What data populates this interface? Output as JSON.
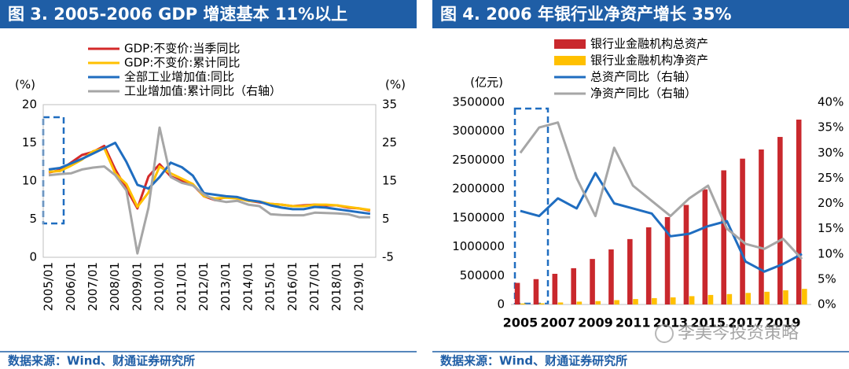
{
  "chart_data": [
    {
      "type": "line",
      "title": "图 3. 2005-2006 GDP 增速基本 11%以上",
      "y_unit": "(%)",
      "y2_unit": "(%)",
      "source": "数据来源：Wind、财通证券研究所",
      "legend": "top",
      "grid": false,
      "categories": [
        "2005/01",
        null,
        "2006/01",
        null,
        "2007/01",
        null,
        "2008/01",
        null,
        "2009/01",
        null,
        "2010/01",
        null,
        "2011/01",
        null,
        "2012/01",
        null,
        "2013/01",
        null,
        "2014/01",
        null,
        "2015/01",
        null,
        "2016/01",
        null,
        "2017/01",
        null,
        "2018/01",
        null,
        "2019/01",
        null
      ],
      "ylim": [
        0,
        20
      ],
      "yticks": [
        0,
        5,
        10,
        15,
        20
      ],
      "y2lim": [
        -5,
        35
      ],
      "y2ticks": [
        -5,
        5,
        15,
        25,
        35
      ],
      "series": [
        {
          "name": "GDP:不变价:当季同比",
          "color": "#d42a2a",
          "values": [
            11.1,
            11.4,
            12.4,
            13.4,
            13.8,
            14.6,
            11.5,
            9.0,
            6.4,
            10.6,
            12.2,
            10.6,
            10.0,
            9.5,
            8.0,
            7.5,
            7.9,
            7.7,
            7.4,
            7.2,
            7.0,
            6.9,
            6.7,
            6.8,
            6.9,
            6.8,
            6.8,
            6.5,
            6.4,
            6.1
          ]
        },
        {
          "name": "GDP:不变价:累计同比",
          "color": "#ffc000",
          "values": [
            11.2,
            11.3,
            12.0,
            12.8,
            13.9,
            14.3,
            11.0,
            9.6,
            6.6,
            8.5,
            11.9,
            11.0,
            10.3,
            9.6,
            8.0,
            7.7,
            7.8,
            7.7,
            7.4,
            7.3,
            7.0,
            6.9,
            6.7,
            6.7,
            6.9,
            6.9,
            6.8,
            6.6,
            6.4,
            6.2
          ]
        },
        {
          "name": "全部工业增加值:同比",
          "color": "#1f6dc0",
          "values": [
            11.5,
            11.7,
            12.3,
            12.9,
            13.6,
            14.3,
            15.0,
            12.5,
            9.5,
            9.0,
            10.5,
            12.4,
            11.8,
            10.7,
            8.4,
            8.2,
            8.0,
            7.9,
            7.5,
            7.3,
            6.8,
            6.5,
            6.3,
            6.3,
            6.6,
            6.5,
            6.3,
            6.1,
            5.9,
            5.7
          ]
        },
        {
          "name": "工业增加值:累计同比（右轴）",
          "color": "#a6a6a6",
          "axis": "y2",
          "values": [
            16.5,
            16.8,
            17.0,
            18.0,
            18.5,
            18.8,
            16.5,
            12.5,
            -4.0,
            8.0,
            29.0,
            16.0,
            14.5,
            13.8,
            11.5,
            10.0,
            9.5,
            9.8,
            8.8,
            8.4,
            6.3,
            6.1,
            6.0,
            6.0,
            6.7,
            6.6,
            6.5,
            6.3,
            5.5,
            5.5
          ]
        }
      ]
    },
    {
      "type": "bar",
      "title": "图 4. 2006 年银行业净资产增长 35%",
      "y_unit": "(亿元)",
      "source": "数据来源：Wind、财通证券研究所",
      "legend": "top-right",
      "grid": false,
      "categories": [
        "2005",
        null,
        "2007",
        null,
        "2009",
        null,
        "2011",
        null,
        "2013",
        null,
        "2015",
        null,
        "2017",
        null,
        "2019",
        null
      ],
      "ylim": [
        0,
        3500000
      ],
      "yticks": [
        0,
        500000,
        1000000,
        1500000,
        2000000,
        2500000,
        3000000,
        3500000
      ],
      "y2lim": [
        0,
        40
      ],
      "y2ticks": [
        {
          "value": 0,
          "label": "0%"
        },
        {
          "value": 5,
          "label": "5%"
        },
        {
          "value": 10,
          "label": "10%"
        },
        {
          "value": 15,
          "label": "15%"
        },
        {
          "value": 20,
          "label": "20%"
        },
        {
          "value": 25,
          "label": "25%"
        },
        {
          "value": 30,
          "label": "30%"
        },
        {
          "value": 35,
          "label": "35%"
        },
        {
          "value": 40,
          "label": "40%"
        }
      ],
      "series": [
        {
          "name": "银行业金融机构总资产",
          "type": "bar",
          "color": "#c9282d",
          "values": [
            374000,
            439000,
            531000,
            628000,
            788000,
            953000,
            1132000,
            1336000,
            1513000,
            1723000,
            1993000,
            2322000,
            2524000,
            2683000,
            2900000,
            3200000
          ]
        },
        {
          "name": "银行业金融机构净资产",
          "type": "bar",
          "color": "#ffc000",
          "values": [
            17000,
            20000,
            35000,
            49000,
            58000,
            75000,
            94000,
            110000,
            123000,
            144000,
            165000,
            180000,
            200000,
            220000,
            245000,
            270000
          ]
        },
        {
          "name": "总资产同比（右轴）",
          "type": "line",
          "axis": "y2",
          "color": "#1f6dc0",
          "values": [
            18.5,
            17.5,
            21.0,
            19.0,
            26.0,
            20.0,
            19.0,
            18.0,
            13.5,
            14.0,
            15.5,
            16.5,
            8.5,
            6.5,
            8.0,
            10.0
          ]
        },
        {
          "name": "净资产同比（右轴）",
          "type": "line",
          "axis": "y2",
          "color": "#a6a6a6",
          "values": [
            30.0,
            35.0,
            36.0,
            25.0,
            17.5,
            31.0,
            23.5,
            20.5,
            17.5,
            21.0,
            23.5,
            15.0,
            12.0,
            11.0,
            13.0,
            9.0
          ]
        }
      ]
    }
  ],
  "watermark": "李美岑投资策略"
}
